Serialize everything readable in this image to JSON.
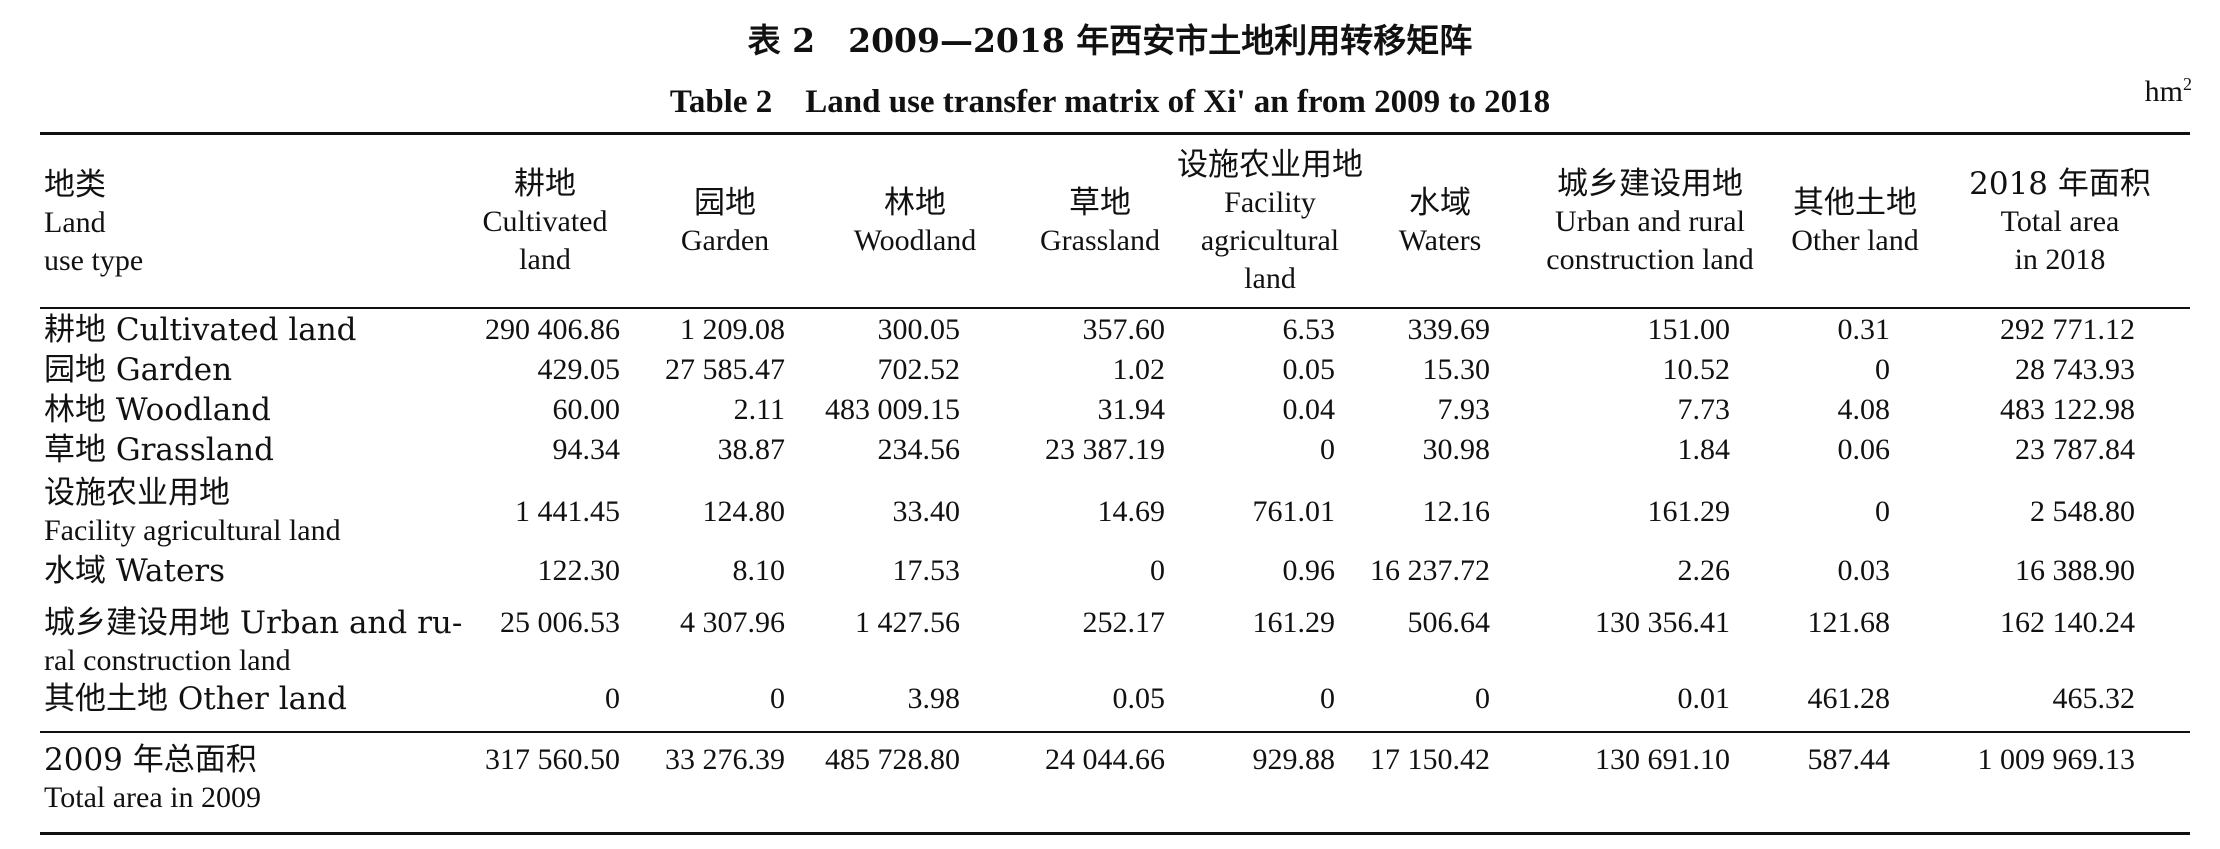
{
  "caption_cn": "表 2　2009—2018 年西安市土地利用转移矩阵",
  "caption_en": "Table 2　Land use transfer matrix of Xi' an from 2009 to 2018",
  "unit": "hm",
  "unit_sup": "2",
  "headers": [
    {
      "cn": "地类",
      "en1": "Land",
      "en2": "use type",
      "en3": ""
    },
    {
      "cn": "耕地",
      "en1": "Cultivated",
      "en2": "land",
      "en3": ""
    },
    {
      "cn": "园地",
      "en1": "Garden",
      "en2": "",
      "en3": ""
    },
    {
      "cn": "林地",
      "en1": "Woodland",
      "en2": "",
      "en3": ""
    },
    {
      "cn": "草地",
      "en1": "Grassland",
      "en2": "",
      "en3": ""
    },
    {
      "cn": "设施农业用地",
      "en1": "Facility",
      "en2": "agricultural",
      "en3": "land"
    },
    {
      "cn": "水域",
      "en1": "Waters",
      "en2": "",
      "en3": ""
    },
    {
      "cn": "城乡建设用地",
      "en1": "Urban and rural",
      "en2": "construction land",
      "en3": ""
    },
    {
      "cn": "其他土地",
      "en1": "Other land",
      "en2": "",
      "en3": ""
    },
    {
      "cn": "2018 年面积",
      "en1": "Total area",
      "en2": "in 2018",
      "en3": ""
    }
  ],
  "rows": [
    {
      "label1": "耕地 Cultivated land",
      "label2": "",
      "values": [
        "290 406.86",
        "1 209.08",
        "300.05",
        "357.60",
        "6.53",
        "339.69",
        "151.00",
        "0.31",
        "292 771.12"
      ]
    },
    {
      "label1": "园地 Garden",
      "label2": "",
      "values": [
        "429.05",
        "27 585.47",
        "702.52",
        "1.02",
        "0.05",
        "15.30",
        "10.52",
        "0",
        "28 743.93"
      ]
    },
    {
      "label1": "林地 Woodland",
      "label2": "",
      "values": [
        "60.00",
        "2.11",
        "483 009.15",
        "31.94",
        "0.04",
        "7.93",
        "7.73",
        "4.08",
        "483 122.98"
      ]
    },
    {
      "label1": "草地 Grassland",
      "label2": "",
      "values": [
        "94.34",
        "38.87",
        "234.56",
        "23 387.19",
        "0",
        "30.98",
        "1.84",
        "0.06",
        "23 787.84"
      ]
    },
    {
      "label1": "设施农业用地",
      "label2": "Facility agricultural land",
      "values": [
        "1 441.45",
        "124.80",
        "33.40",
        "14.69",
        "761.01",
        "12.16",
        "161.29",
        "0",
        "2 548.80"
      ]
    },
    {
      "label1": "水域 Waters",
      "label2": "",
      "values": [
        "122.30",
        "8.10",
        "17.53",
        "0",
        "0.96",
        "16 237.72",
        "2.26",
        "0.03",
        "16 388.90"
      ]
    },
    {
      "label1": "城乡建设用地 Urban and ru-",
      "label2": "ral construction land",
      "values": [
        "25 006.53",
        "4 307.96",
        "1 427.56",
        "252.17",
        "161.29",
        "506.64",
        "130 356.41",
        "121.68",
        "162 140.24"
      ]
    },
    {
      "label1": "其他土地 Other land",
      "label2": "",
      "values": [
        "0",
        "0",
        "3.98",
        "0.05",
        "0",
        "0",
        "0.01",
        "461.28",
        "465.32"
      ]
    }
  ],
  "total_row": {
    "label1": "2009 年总面积",
    "label2": "Total area in 2009",
    "values": [
      "317 560.50",
      "33 276.39",
      "485 728.80",
      "24 044.66",
      "929.88",
      "17 150.42",
      "130 691.10",
      "587.44",
      "1 009 969.13"
    ]
  }
}
